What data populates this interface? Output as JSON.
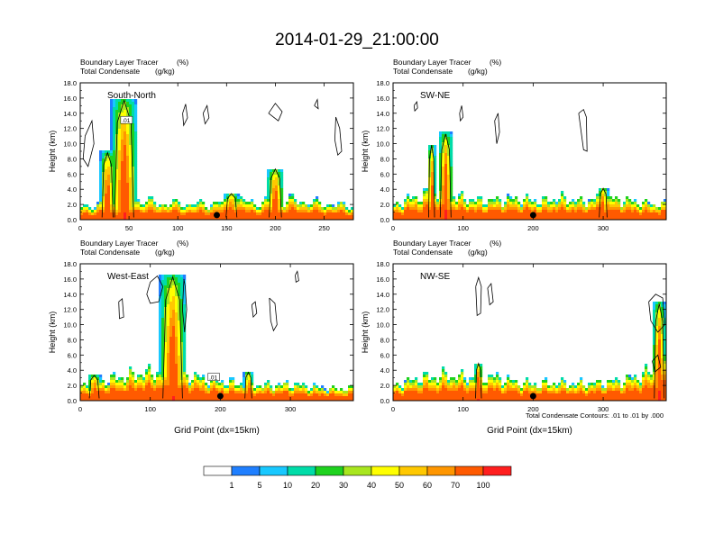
{
  "figure": {
    "title": "2014-01-29_21:00:00",
    "footnote": "Total Condensate Contours: .01 to .01 by .000"
  },
  "colorbar": {
    "colors": [
      "#ffffff",
      "#1f7fff",
      "#18c8ff",
      "#00dca8",
      "#1ed21e",
      "#a8e61e",
      "#ffff00",
      "#ffc800",
      "#ff9600",
      "#ff5a00",
      "#ff1e1e"
    ],
    "labels": [
      "1",
      "5",
      "10",
      "20",
      "30",
      "40",
      "50",
      "60",
      "70",
      "100"
    ]
  },
  "chart_data": [
    {
      "type": "heatmap",
      "panel_label": "South-North",
      "line1": "Boundary Layer Tracer",
      "line1_unit": "(%)",
      "line2": "Total Condensate",
      "line2_unit": "(g/kg)",
      "ylabel": "Height (km)",
      "xlabel": "",
      "ylim": [
        0,
        18
      ],
      "xlim": [
        0,
        280
      ],
      "yticks": [
        "0.0",
        "2.0",
        "4.0",
        "6.0",
        "8.0",
        "10.0",
        "12.0",
        "14.0",
        "16.0",
        "18.0"
      ],
      "xticks": [
        {
          "v": 0,
          "label": "0"
        },
        {
          "v": 50,
          "label": "50"
        },
        {
          "v": 100,
          "label": "100"
        },
        {
          "v": 150,
          "label": "150"
        },
        {
          "v": 200,
          "label": "200"
        },
        {
          "v": 250,
          "label": "250"
        }
      ],
      "marker_x": 140,
      "contour_label": ".01",
      "contour_label_pos": [
        47,
        13
      ],
      "tracer_base": [
        [
          0,
          1.6
        ],
        [
          20,
          2.0
        ],
        [
          40,
          2.4
        ],
        [
          60,
          2.6
        ],
        [
          80,
          2.2
        ],
        [
          100,
          2.1
        ],
        [
          120,
          2.0
        ],
        [
          140,
          2.2
        ],
        [
          160,
          2.6
        ],
        [
          180,
          2.2
        ],
        [
          200,
          2.4
        ],
        [
          220,
          2.6
        ],
        [
          240,
          2.2
        ],
        [
          260,
          2.0
        ],
        [
          280,
          1.8
        ]
      ],
      "plumes": [
        {
          "x": 45,
          "w": 14,
          "top": 16.0
        },
        {
          "x": 28,
          "w": 8,
          "top": 9.0
        },
        {
          "x": 200,
          "w": 9,
          "top": 6.8
        },
        {
          "x": 155,
          "w": 8,
          "top": 3.5
        }
      ],
      "contours": [
        [
          [
            5,
            11
          ],
          [
            12,
            13
          ],
          [
            14,
            10
          ],
          [
            8,
            7
          ],
          [
            3,
            8
          ],
          [
            5,
            11
          ]
        ],
        [
          [
            105,
            14
          ],
          [
            108,
            15.2
          ],
          [
            110,
            13.4
          ],
          [
            106,
            12.4
          ],
          [
            105,
            14
          ]
        ],
        [
          [
            126,
            14
          ],
          [
            130,
            15
          ],
          [
            132,
            13.4
          ],
          [
            128,
            12.6
          ],
          [
            126,
            14
          ]
        ],
        [
          [
            193,
            14
          ],
          [
            200,
            15.3
          ],
          [
            207,
            14.2
          ],
          [
            203,
            13
          ],
          [
            193,
            14
          ]
        ],
        [
          [
            240,
            15
          ],
          [
            243,
            15.8
          ],
          [
            244,
            14.6
          ],
          [
            240,
            15
          ]
        ],
        [
          [
            262,
            13.5
          ],
          [
            266,
            12
          ],
          [
            268,
            9
          ],
          [
            264,
            8.5
          ],
          [
            261,
            10.5
          ],
          [
            262,
            13.5
          ]
        ]
      ]
    },
    {
      "type": "heatmap",
      "panel_label": "SW-NE",
      "line1": "Boundary Layer Tracer",
      "line1_unit": "(%)",
      "line2": "Total Condensate",
      "line2_unit": "(g/kg)",
      "ylabel": "Height (km)",
      "xlabel": "",
      "ylim": [
        0,
        18
      ],
      "xlim": [
        0,
        390
      ],
      "yticks": [
        "0.0",
        "2.0",
        "4.0",
        "6.0",
        "8.0",
        "10.0",
        "12.0",
        "14.0",
        "16.0",
        "18.0"
      ],
      "xticks": [
        {
          "v": 0,
          "label": "0"
        },
        {
          "v": 100,
          "label": "100"
        },
        {
          "v": 200,
          "label": "200"
        },
        {
          "v": 300,
          "label": "300"
        }
      ],
      "marker_x": 200,
      "contour_label": "",
      "contour_label_pos": [
        0,
        0
      ],
      "tracer_base": [
        [
          0,
          1.8
        ],
        [
          30,
          3.0
        ],
        [
          60,
          3.6
        ],
        [
          90,
          3.0
        ],
        [
          120,
          2.5
        ],
        [
          150,
          2.6
        ],
        [
          180,
          2.8
        ],
        [
          210,
          2.4
        ],
        [
          240,
          2.8
        ],
        [
          270,
          2.4
        ],
        [
          300,
          3.0
        ],
        [
          330,
          2.6
        ],
        [
          360,
          2.2
        ],
        [
          390,
          2.0
        ]
      ],
      "plumes": [
        {
          "x": 75,
          "w": 11,
          "top": 11.5
        },
        {
          "x": 55,
          "w": 6,
          "top": 10.0
        },
        {
          "x": 300,
          "w": 8,
          "top": 4.2
        }
      ],
      "contours": [
        [
          [
            30,
            15
          ],
          [
            34,
            15.5
          ],
          [
            35,
            14.7
          ],
          [
            31,
            14.3
          ],
          [
            30,
            15
          ]
        ],
        [
          [
            95,
            14
          ],
          [
            98,
            15
          ],
          [
            100,
            13.5
          ],
          [
            96,
            13
          ],
          [
            95,
            14
          ]
        ],
        [
          [
            145,
            13
          ],
          [
            150,
            14
          ],
          [
            152,
            11.5
          ],
          [
            148,
            10
          ],
          [
            145,
            13
          ]
        ],
        [
          [
            265,
            14
          ],
          [
            272,
            14.5
          ],
          [
            276,
            13.5
          ],
          [
            277,
            9
          ],
          [
            272,
            9.2
          ],
          [
            265,
            14
          ]
        ]
      ]
    },
    {
      "type": "heatmap",
      "panel_label": "West-East",
      "line1": "Boundary Layer Tracer",
      "line1_unit": "(%)",
      "line2": "Total Condensate",
      "line2_unit": "(g/kg)",
      "ylabel": "Height (km)",
      "xlabel": "Grid Point  (dx=15km)",
      "ylim": [
        0,
        18
      ],
      "xlim": [
        0,
        390
      ],
      "yticks": [
        "0.0",
        "2.0",
        "4.0",
        "6.0",
        "8.0",
        "10.0",
        "12.0",
        "14.0",
        "16.0",
        "18.0"
      ],
      "xticks": [
        {
          "v": 0,
          "label": "0"
        },
        {
          "v": 100,
          "label": "100"
        },
        {
          "v": 200,
          "label": "200"
        },
        {
          "v": 300,
          "label": "300"
        }
      ],
      "marker_x": 200,
      "contour_label": ".01",
      "contour_label_pos": [
        190,
        3
      ],
      "tracer_base": [
        [
          0,
          2.0
        ],
        [
          40,
          2.8
        ],
        [
          80,
          3.6
        ],
        [
          110,
          3.8
        ],
        [
          150,
          3.5
        ],
        [
          180,
          2.8
        ],
        [
          210,
          2.4
        ],
        [
          240,
          2.2
        ],
        [
          270,
          2.0
        ],
        [
          300,
          2.2
        ],
        [
          330,
          1.8
        ],
        [
          360,
          1.6
        ],
        [
          390,
          1.6
        ]
      ],
      "plumes": [
        {
          "x": 132,
          "w": 20,
          "top": 16.6
        },
        {
          "x": 240,
          "w": 7,
          "top": 3.8
        },
        {
          "x": 20,
          "w": 10,
          "top": 3.4
        }
      ],
      "contours": [
        [
          [
            55,
            13
          ],
          [
            60,
            13.4
          ],
          [
            62,
            11
          ],
          [
            56,
            10.8
          ],
          [
            55,
            13
          ]
        ],
        [
          [
            95,
            14
          ],
          [
            100,
            15.6
          ],
          [
            110,
            16.4
          ],
          [
            118,
            15
          ],
          [
            112,
            13
          ],
          [
            100,
            12.8
          ],
          [
            95,
            14
          ]
        ],
        [
          [
            148,
            16
          ],
          [
            150,
            15
          ],
          [
            152,
            12
          ],
          [
            149,
            9
          ],
          [
            146,
            12
          ],
          [
            148,
            16
          ]
        ],
        [
          [
            245,
            12.6
          ],
          [
            250,
            13
          ],
          [
            252,
            11.5
          ],
          [
            247,
            11
          ],
          [
            245,
            12.6
          ]
        ],
        [
          [
            270,
            13.5
          ],
          [
            278,
            12.8
          ],
          [
            281,
            10
          ],
          [
            276,
            9.2
          ],
          [
            272,
            10.5
          ],
          [
            270,
            13.5
          ]
        ],
        [
          [
            307,
            16.5
          ],
          [
            310,
            17
          ],
          [
            312,
            15.8
          ],
          [
            308,
            15.6
          ],
          [
            307,
            16.5
          ]
        ]
      ]
    },
    {
      "type": "heatmap",
      "panel_label": "NW-SE",
      "line1": "Boundary Layer Tracer",
      "line1_unit": "(%)",
      "line2": "Total Condensate",
      "line2_unit": "(g/kg)",
      "ylabel": "Height (km)",
      "xlabel": "Grid Point  (dx=15km)",
      "ylim": [
        0,
        18
      ],
      "xlim": [
        0,
        390
      ],
      "yticks": [
        "0.0",
        "2.0",
        "4.0",
        "6.0",
        "8.0",
        "10.0",
        "12.0",
        "14.0",
        "16.0",
        "18.0"
      ],
      "xticks": [
        {
          "v": 0,
          "label": "0"
        },
        {
          "v": 100,
          "label": "100"
        },
        {
          "v": 200,
          "label": "200"
        },
        {
          "v": 300,
          "label": "300"
        }
      ],
      "marker_x": 200,
      "contour_label": "",
      "contour_label_pos": [
        0,
        0
      ],
      "tracer_base": [
        [
          0,
          2.0
        ],
        [
          40,
          3.0
        ],
        [
          80,
          3.4
        ],
        [
          110,
          3.0
        ],
        [
          140,
          3.2
        ],
        [
          170,
          2.6
        ],
        [
          200,
          2.2
        ],
        [
          230,
          2.4
        ],
        [
          260,
          2.2
        ],
        [
          290,
          2.4
        ],
        [
          320,
          2.6
        ],
        [
          350,
          3.2
        ],
        [
          370,
          4.0
        ],
        [
          390,
          5.0
        ]
      ],
      "plumes": [
        {
          "x": 122,
          "w": 6,
          "top": 5.0
        },
        {
          "x": 380,
          "w": 10,
          "top": 13.0
        }
      ],
      "contours": [
        [
          [
            118,
            15
          ],
          [
            122,
            16.2
          ],
          [
            126,
            15
          ],
          [
            125,
            11.5
          ],
          [
            120,
            11.2
          ],
          [
            118,
            15
          ]
        ],
        [
          [
            135,
            14.8
          ],
          [
            140,
            15.4
          ],
          [
            143,
            13
          ],
          [
            138,
            12.6
          ],
          [
            135,
            14.8
          ]
        ],
        [
          [
            365,
            13
          ],
          [
            375,
            14
          ],
          [
            385,
            13.5
          ],
          [
            388,
            10
          ],
          [
            378,
            9
          ],
          [
            368,
            10.5
          ],
          [
            365,
            13
          ]
        ],
        [
          [
            370,
            5.2
          ],
          [
            378,
            6
          ],
          [
            382,
            4.4
          ],
          [
            374,
            3.8
          ],
          [
            370,
            5.2
          ]
        ]
      ]
    }
  ]
}
